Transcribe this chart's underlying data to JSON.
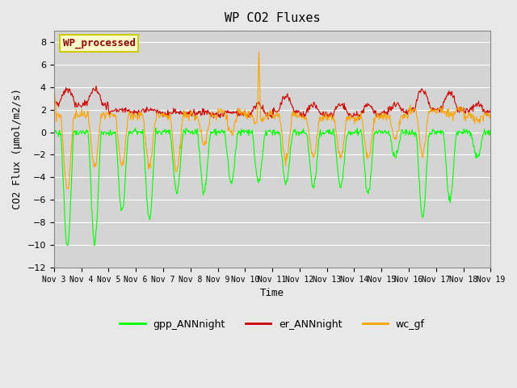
{
  "title": "WP CO2 Fluxes",
  "xlabel": "Time",
  "ylabel": "CO2 Flux (μmol/m2/s)",
  "ylim": [
    -12,
    9
  ],
  "yticks": [
    -12,
    -10,
    -8,
    -6,
    -4,
    -2,
    0,
    2,
    4,
    6,
    8
  ],
  "legend_label": "WP_processed",
  "line_labels": [
    "gpp_ANNnight",
    "er_ANNnight",
    "wc_gf"
  ],
  "line_colors": [
    "#00ff00",
    "#cc0000",
    "#ffa500"
  ],
  "background_color": "#e8e8e8",
  "plot_bg_color": "#d4d4d4",
  "n_days": 16,
  "points_per_day": 48,
  "start_day": 3
}
